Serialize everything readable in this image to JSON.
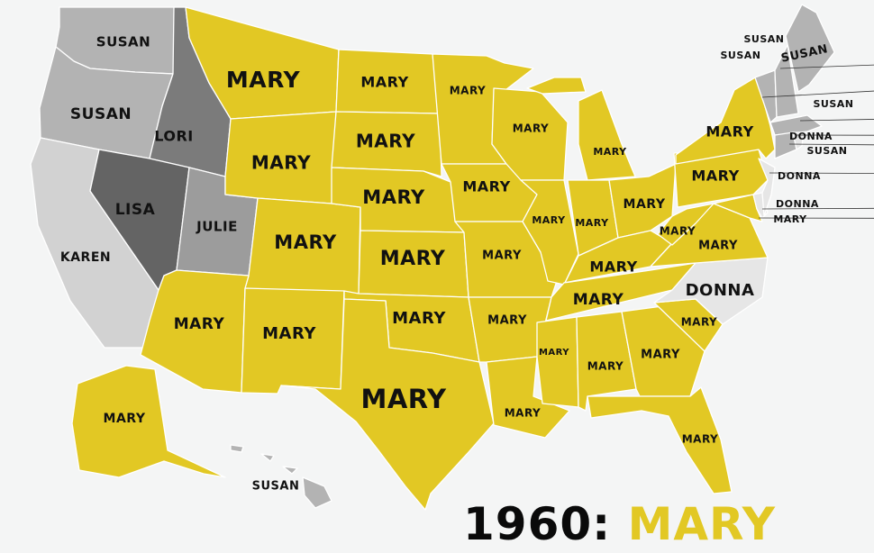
{
  "title": {
    "year": "1960:",
    "name": "MARY"
  },
  "colors": {
    "MARY": "#e2c824",
    "SUSAN": "#b3b3b3",
    "LORI": "#7b7b7b",
    "LISA": "#646464",
    "JULIE": "#9c9c9c",
    "KAREN": "#d2d2d2",
    "DONNA": "#e6e6e6",
    "background": "#f4f5f5"
  },
  "states": {
    "WA": "SUSAN",
    "OR": "SUSAN",
    "CA": "KAREN",
    "ID": "LORI",
    "NV": "LISA",
    "UT": "JULIE",
    "MT": "MARY",
    "WY": "MARY",
    "CO": "MARY",
    "AZ": "MARY",
    "NM": "MARY",
    "ND": "MARY",
    "SD": "MARY",
    "NE": "MARY",
    "KS": "MARY",
    "OK": "MARY",
    "TX": "MARY",
    "MN": "MARY",
    "IA": "MARY",
    "MO": "MARY",
    "AR": "MARY",
    "LA": "MARY",
    "WI": "MARY",
    "IL": "MARY",
    "MI": "MARY",
    "IN": "MARY",
    "OH": "MARY",
    "KY": "MARY",
    "TN": "MARY",
    "MS": "MARY",
    "AL": "MARY",
    "GA": "MARY",
    "FL": "MARY",
    "SC": "MARY",
    "NC": "DONNA",
    "VA": "MARY",
    "WV": "MARY",
    "PA": "MARY",
    "NY": "MARY",
    "MD": "MARY",
    "DE": "DONNA",
    "NJ": "DONNA",
    "VT": "SUSAN",
    "NH": "SUSAN",
    "ME": "SUSAN",
    "MA": "SUSAN",
    "CT": "SUSAN",
    "RI": "DONNA",
    "AK": "MARY",
    "HI": "SUSAN"
  }
}
